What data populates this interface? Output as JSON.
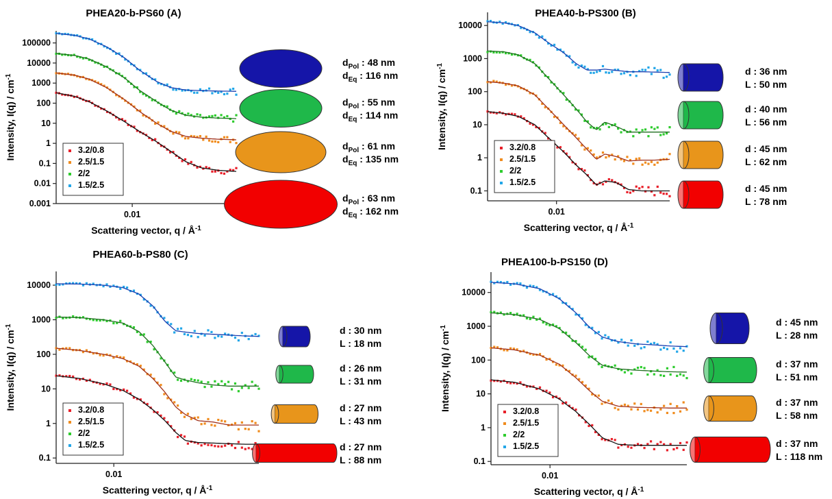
{
  "chart_data": [
    {
      "id": "A",
      "type": "scatter",
      "title": "PHEA20-b-PS60 (A)",
      "xlabel": "Scattering vector, q / Å",
      "xlabel_sup": "-1",
      "ylabel": "Intensity, I(q) / cm",
      "ylabel_sup": "-1",
      "xscale": "log",
      "yscale": "log",
      "xlim": [
        0.0035,
        0.042
      ],
      "ylim": [
        0.001,
        400000
      ],
      "xticks": [
        {
          "v": 0.01,
          "label": "0.01"
        }
      ],
      "yticks": [
        {
          "v": 0.001,
          "label": "0.001"
        },
        {
          "v": 0.01,
          "label": "0.01"
        },
        {
          "v": 0.1,
          "label": "0.1"
        },
        {
          "v": 1,
          "label": "1"
        },
        {
          "v": 10,
          "label": "10"
        },
        {
          "v": 100,
          "label": "100"
        },
        {
          "v": 1000,
          "label": "1000"
        },
        {
          "v": 10000,
          "label": "10000"
        },
        {
          "v": 100000,
          "label": "100000"
        }
      ],
      "legend_position": "bottom-left",
      "series": [
        {
          "name": "3.2/0.8",
          "color": "#e8202a",
          "x": [
            0.0035,
            0.0045,
            0.0055,
            0.007,
            0.009,
            0.011,
            0.014,
            0.017,
            0.021,
            0.026,
            0.033,
            0.042
          ],
          "y": [
            330,
            220,
            120,
            42,
            12,
            4,
            1.2,
            0.4,
            0.12,
            0.06,
            0.045,
            0.04
          ]
        },
        {
          "name": "2.5/1.5",
          "color": "#f08c1e",
          "x": [
            0.0035,
            0.0045,
            0.0055,
            0.007,
            0.009,
            0.011,
            0.014,
            0.017,
            0.021,
            0.026,
            0.033,
            0.042
          ],
          "y": [
            3200,
            2500,
            1600,
            600,
            150,
            40,
            10,
            4,
            2.2,
            1.8,
            1.6,
            1.5
          ]
        },
        {
          "name": "2/2",
          "color": "#2ecc2e",
          "x": [
            0.0035,
            0.0045,
            0.0055,
            0.007,
            0.009,
            0.011,
            0.014,
            0.017,
            0.021,
            0.026,
            0.033,
            0.042
          ],
          "y": [
            30000,
            24000,
            16000,
            6500,
            1800,
            450,
            120,
            45,
            25,
            20,
            18,
            17
          ]
        },
        {
          "name": "1.5/2.5",
          "color": "#22a6e8",
          "x": [
            0.0035,
            0.0045,
            0.0055,
            0.007,
            0.009,
            0.011,
            0.014,
            0.017,
            0.021,
            0.026,
            0.033,
            0.042
          ],
          "y": [
            300000,
            240000,
            160000,
            65000,
            18000,
            4500,
            1200,
            600,
            450,
            420,
            400,
            390
          ]
        }
      ],
      "shapes": [
        {
          "kind": "ellipse",
          "fill": "#1515a8",
          "lines": [
            {
              "pre": "d",
              "sub": "Pol",
              "post": " : 48 nm"
            },
            {
              "pre": "d",
              "sub": "Eq",
              "post": " : 116 nm"
            }
          ]
        },
        {
          "kind": "ellipse",
          "fill": "#1fb84a",
          "lines": [
            {
              "pre": "d",
              "sub": "Pol",
              "post": " : 55 nm"
            },
            {
              "pre": "d",
              "sub": "Eq",
              "post": " : 114 nm"
            }
          ]
        },
        {
          "kind": "ellipse",
          "fill": "#e8951b",
          "lines": [
            {
              "pre": "d",
              "sub": "Pol",
              "post": " : 61 nm"
            },
            {
              "pre": "d",
              "sub": "Eq",
              "post": " : 135 nm"
            }
          ]
        },
        {
          "kind": "ellipse",
          "fill": "#f20000",
          "lines": [
            {
              "pre": "d",
              "sub": "Pol",
              "post": " : 63 nm"
            },
            {
              "pre": "d",
              "sub": "Eq",
              "post": " : 162 nm"
            }
          ]
        }
      ]
    },
    {
      "id": "B",
      "type": "scatter",
      "title": "PHEA40-b-PS300 (B)",
      "xlabel": "Scattering vector, q / Å",
      "xlabel_sup": "-1",
      "ylabel": "Intensity, I(q) / cm",
      "ylabel_sup": "-1",
      "xscale": "log",
      "yscale": "log",
      "xlim": [
        0.004,
        0.045
      ],
      "ylim": [
        0.05,
        25000
      ],
      "xticks": [
        {
          "v": 0.01,
          "label": "0.01"
        }
      ],
      "yticks": [
        {
          "v": 0.1,
          "label": "0.1"
        },
        {
          "v": 1,
          "label": "1"
        },
        {
          "v": 10,
          "label": "10"
        },
        {
          "v": 100,
          "label": "100"
        },
        {
          "v": 1000,
          "label": "1000"
        },
        {
          "v": 10000,
          "label": "10000"
        }
      ],
      "legend_position": "bottom-left",
      "series": [
        {
          "name": "3.2/0.8",
          "color": "#e8202a",
          "x": [
            0.004,
            0.005,
            0.006,
            0.0075,
            0.009,
            0.011,
            0.013,
            0.015,
            0.017,
            0.019,
            0.022,
            0.026,
            0.031,
            0.037,
            0.045
          ],
          "y": [
            25,
            22,
            18,
            10,
            4,
            1.5,
            0.6,
            0.3,
            0.15,
            0.2,
            0.18,
            0.11,
            0.1,
            0.1,
            0.1
          ]
        },
        {
          "name": "2.5/1.5",
          "color": "#f08c1e",
          "x": [
            0.004,
            0.005,
            0.006,
            0.0075,
            0.009,
            0.011,
            0.013,
            0.015,
            0.017,
            0.019,
            0.022,
            0.026,
            0.031,
            0.037,
            0.045
          ],
          "y": [
            200,
            180,
            150,
            80,
            30,
            10,
            4,
            1.8,
            0.9,
            1.3,
            1.1,
            0.8,
            0.85,
            0.85,
            0.9
          ]
        },
        {
          "name": "2/2",
          "color": "#2ecc2e",
          "x": [
            0.004,
            0.005,
            0.006,
            0.0075,
            0.009,
            0.011,
            0.013,
            0.015,
            0.017,
            0.019,
            0.022,
            0.026,
            0.031,
            0.037,
            0.045
          ],
          "y": [
            1700,
            1600,
            1300,
            700,
            250,
            80,
            30,
            12,
            7,
            12,
            9,
            6,
            6,
            6,
            6
          ]
        },
        {
          "name": "1.5/2.5",
          "color": "#22a6e8",
          "x": [
            0.004,
            0.005,
            0.006,
            0.0075,
            0.009,
            0.011,
            0.013,
            0.015,
            0.017,
            0.019,
            0.022,
            0.026,
            0.031,
            0.037,
            0.045
          ],
          "y": [
            13000,
            12000,
            10000,
            6000,
            3000,
            1500,
            700,
            450,
            450,
            480,
            440,
            400,
            400,
            390,
            380
          ]
        }
      ],
      "shapes": [
        {
          "kind": "cylinder",
          "fill": "#1515a8",
          "lines": [
            {
              "pre": "d : 36 nm"
            },
            {
              "pre": "L : 50 nm"
            }
          ]
        },
        {
          "kind": "cylinder",
          "fill": "#1fb84a",
          "lines": [
            {
              "pre": "d : 40 nm"
            },
            {
              "pre": "L : 56 nm"
            }
          ]
        },
        {
          "kind": "cylinder",
          "fill": "#e8951b",
          "lines": [
            {
              "pre": "d : 45 nm"
            },
            {
              "pre": "L : 62 nm"
            }
          ]
        },
        {
          "kind": "cylinder",
          "fill": "#f20000",
          "lines": [
            {
              "pre": "d : 45 nm"
            },
            {
              "pre": "L : 78 nm"
            }
          ]
        }
      ]
    },
    {
      "id": "C",
      "type": "scatter",
      "title": "PHEA60-b-PS80 (C)",
      "xlabel": "Scattering vector, q / Å",
      "xlabel_sup": "-1",
      "ylabel": "Intensity, I(q) / cm",
      "ylabel_sup": "-1",
      "xscale": "log",
      "yscale": "log",
      "xlim": [
        0.0055,
        0.045
      ],
      "ylim": [
        0.07,
        25000
      ],
      "xticks": [
        {
          "v": 0.01,
          "label": "0.01"
        }
      ],
      "yticks": [
        {
          "v": 0.1,
          "label": "0.1"
        },
        {
          "v": 1,
          "label": "1"
        },
        {
          "v": 10,
          "label": "10"
        },
        {
          "v": 100,
          "label": "100"
        },
        {
          "v": 1000,
          "label": "1000"
        },
        {
          "v": 10000,
          "label": "10000"
        }
      ],
      "legend_position": "bottom-left",
      "series": [
        {
          "name": "3.2/0.8",
          "color": "#e8202a",
          "x": [
            0.0055,
            0.007,
            0.009,
            0.011,
            0.013,
            0.015,
            0.017,
            0.019,
            0.021,
            0.024,
            0.028,
            0.033,
            0.039,
            0.045
          ],
          "y": [
            24,
            20,
            14,
            9,
            5,
            2.5,
            1.2,
            0.55,
            0.32,
            0.28,
            0.27,
            0.26,
            0.25,
            0.25
          ]
        },
        {
          "name": "2.5/1.5",
          "color": "#f08c1e",
          "x": [
            0.0055,
            0.007,
            0.009,
            0.011,
            0.013,
            0.015,
            0.017,
            0.019,
            0.021,
            0.024,
            0.028,
            0.033,
            0.039,
            0.045
          ],
          "y": [
            150,
            130,
            100,
            75,
            45,
            20,
            8,
            3,
            1.8,
            1.2,
            1.1,
            0.9,
            0.9,
            0.9
          ]
        },
        {
          "name": "2/2",
          "color": "#2ecc2e",
          "x": [
            0.0055,
            0.007,
            0.009,
            0.011,
            0.013,
            0.015,
            0.017,
            0.019,
            0.021,
            0.024,
            0.028,
            0.033,
            0.039,
            0.045
          ],
          "y": [
            1200,
            1150,
            1000,
            800,
            450,
            180,
            60,
            22,
            18,
            15,
            13,
            12,
            12,
            12
          ]
        },
        {
          "name": "1.5/2.5",
          "color": "#22a6e8",
          "x": [
            0.0055,
            0.007,
            0.009,
            0.011,
            0.013,
            0.015,
            0.017,
            0.019,
            0.021,
            0.024,
            0.028,
            0.033,
            0.039,
            0.045
          ],
          "y": [
            11000,
            10800,
            10000,
            8500,
            5500,
            2500,
            900,
            480,
            440,
            400,
            380,
            360,
            340,
            330
          ]
        }
      ],
      "shapes": [
        {
          "kind": "cylinder",
          "fill": "#1515a8",
          "lines": [
            {
              "pre": "d : 30 nm"
            },
            {
              "pre": "L : 18 nm"
            }
          ]
        },
        {
          "kind": "cylinder",
          "fill": "#1fb84a",
          "lines": [
            {
              "pre": "d : 26 nm"
            },
            {
              "pre": "L : 31 nm"
            }
          ]
        },
        {
          "kind": "cylinder",
          "fill": "#e8951b",
          "lines": [
            {
              "pre": "d : 27 nm"
            },
            {
              "pre": "L : 43 nm"
            }
          ]
        },
        {
          "kind": "cylinder",
          "fill": "#f20000",
          "lines": [
            {
              "pre": "d : 27 nm"
            },
            {
              "pre": "L : 88 nm"
            }
          ]
        }
      ]
    },
    {
      "id": "D",
      "type": "scatter",
      "title": "PHEA100-b-PS150 (D)",
      "xlabel": "Scattering vector, q / Å",
      "xlabel_sup": "-1",
      "ylabel": "Intensity, I(q) / cm",
      "ylabel_sup": "-1",
      "xscale": "log",
      "yscale": "log",
      "xlim": [
        0.0055,
        0.04
      ],
      "ylim": [
        0.08,
        40000
      ],
      "xticks": [
        {
          "v": 0.01,
          "label": "0.01"
        }
      ],
      "yticks": [
        {
          "v": 0.1,
          "label": "0.1"
        },
        {
          "v": 1,
          "label": "1"
        },
        {
          "v": 10,
          "label": "10"
        },
        {
          "v": 100,
          "label": "100"
        },
        {
          "v": 1000,
          "label": "1000"
        },
        {
          "v": 10000,
          "label": "10000"
        }
      ],
      "legend_position": "bottom-left",
      "series": [
        {
          "name": "3.2/0.8",
          "color": "#e8202a",
          "x": [
            0.0055,
            0.007,
            0.009,
            0.011,
            0.013,
            0.015,
            0.017,
            0.02,
            0.024,
            0.029,
            0.034,
            0.04
          ],
          "y": [
            26,
            22,
            14,
            7,
            3,
            1.2,
            0.5,
            0.32,
            0.3,
            0.3,
            0.3,
            0.3
          ]
        },
        {
          "name": "2.5/1.5",
          "color": "#f08c1e",
          "x": [
            0.0055,
            0.007,
            0.009,
            0.011,
            0.013,
            0.015,
            0.017,
            0.02,
            0.024,
            0.029,
            0.034,
            0.04
          ],
          "y": [
            230,
            200,
            140,
            75,
            30,
            12,
            6,
            4.3,
            4,
            3.9,
            3.8,
            3.8
          ]
        },
        {
          "name": "2/2",
          "color": "#2ecc2e",
          "x": [
            0.0055,
            0.007,
            0.009,
            0.011,
            0.013,
            0.015,
            0.017,
            0.02,
            0.024,
            0.029,
            0.034,
            0.04
          ],
          "y": [
            2500,
            2200,
            1600,
            850,
            330,
            130,
            70,
            55,
            50,
            47,
            45,
            44
          ]
        },
        {
          "name": "1.5/2.5",
          "color": "#22a6e8",
          "x": [
            0.0055,
            0.007,
            0.009,
            0.011,
            0.013,
            0.015,
            0.017,
            0.02,
            0.024,
            0.029,
            0.034,
            0.04
          ],
          "y": [
            20000,
            18000,
            13000,
            6500,
            2500,
            900,
            480,
            350,
            300,
            280,
            260,
            250
          ]
        }
      ],
      "shapes": [
        {
          "kind": "cylinder",
          "fill": "#1515a8",
          "lines": [
            {
              "pre": "d : 45 nm"
            },
            {
              "pre": "L : 28 nm"
            }
          ]
        },
        {
          "kind": "cylinder",
          "fill": "#1fb84a",
          "lines": [
            {
              "pre": "d : 37 nm"
            },
            {
              "pre": "L : 51 nm"
            }
          ]
        },
        {
          "kind": "cylinder",
          "fill": "#e8951b",
          "lines": [
            {
              "pre": "d : 37 nm"
            },
            {
              "pre": "L : 58 nm"
            }
          ]
        },
        {
          "kind": "cylinder",
          "fill": "#f20000",
          "lines": [
            {
              "pre": "d : 37 nm"
            },
            {
              "pre": "L : 118 nm"
            }
          ]
        }
      ]
    }
  ]
}
